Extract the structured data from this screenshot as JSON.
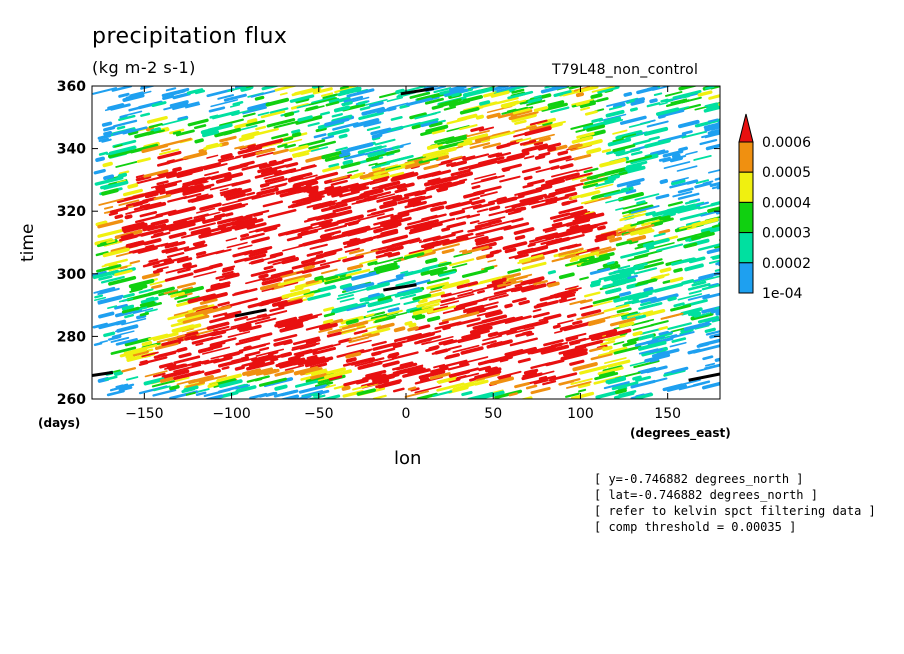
{
  "chart_data": {
    "type": "heatmap",
    "title": "precipitation flux",
    "units": "(kg m-2 s-1)",
    "subtitle_right": "T79L48_non_control",
    "xlabel": "lon",
    "ylabel": "time",
    "x_unit": "(degrees_east)",
    "y_unit": "(days)",
    "xlim": [
      -180,
      180
    ],
    "ylim": [
      260,
      360
    ],
    "x_ticks": [
      -150,
      -100,
      -50,
      0,
      50,
      100,
      150
    ],
    "y_ticks": [
      260,
      280,
      300,
      320,
      340,
      360
    ],
    "colorbar": {
      "levels": [
        "1e-04",
        "0.0002",
        "0.0003",
        "0.0004",
        "0.0005",
        "0.0006"
      ],
      "colors": [
        "#1ea0f0",
        "#00e0a0",
        "#10d010",
        "#f0f010",
        "#f09010",
        "#e81010"
      ]
    },
    "features": [
      {
        "lon_start": -180,
        "lon_end": -168,
        "time_start": 267.5,
        "time_end": 268.5
      },
      {
        "lon_start": -98,
        "lon_end": -80,
        "time_start": 286.5,
        "time_end": 288.5
      },
      {
        "lon_start": -13,
        "lon_end": 6,
        "time_start": 294.8,
        "time_end": 296.5
      },
      {
        "lon_start": -3,
        "lon_end": 16,
        "time_start": 357.5,
        "time_end": 359.2
      },
      {
        "lon_start": 162,
        "lon_end": 180,
        "time_start": 266,
        "time_end": 268
      }
    ],
    "grid": false
  },
  "annotations": [
    "[ y=-0.746882 degrees_north ]",
    "[ lat=-0.746882 degrees_north ]",
    "[ refer to kelvin spct filtering data ]",
    "[ comp threshold = 0.00035 ]"
  ]
}
